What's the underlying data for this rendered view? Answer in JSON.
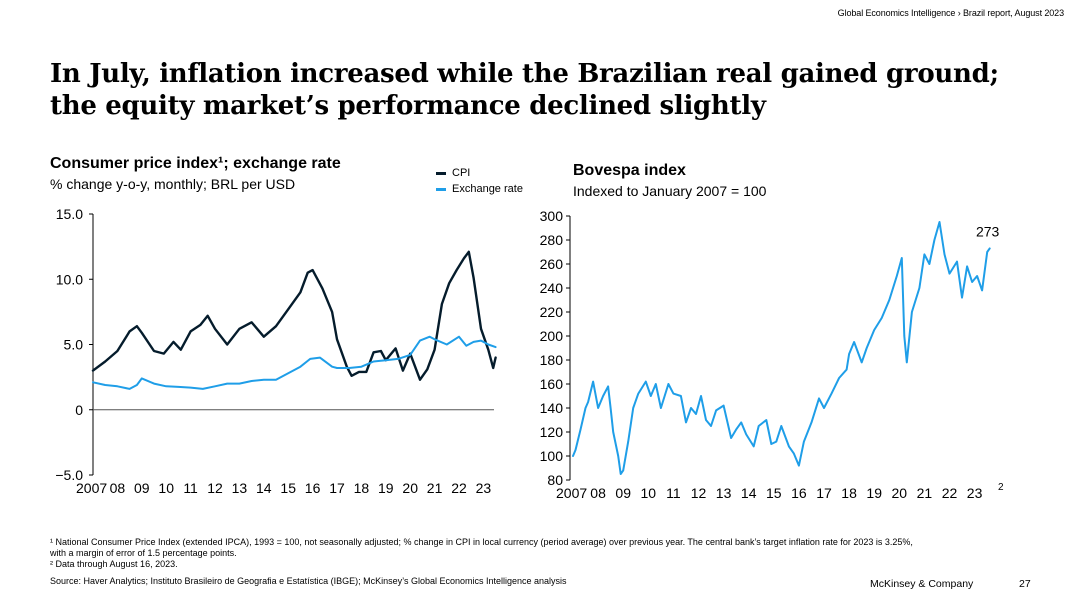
{
  "header": {
    "report_label": "Global Economics Intelligence › Brazil report, August 2023"
  },
  "title": {
    "line1": "In July, inflation increased while the Brazilian real gained ground;",
    "line2": "the equity market’s performance declined slightly"
  },
  "left_chart": {
    "title": "Consumer price index¹; exchange rate",
    "subtitle": "% change y-o-y, monthly; BRL per USD",
    "legend": [
      {
        "label": "CPI",
        "color": "#051c2c"
      },
      {
        "label": "Exchange rate",
        "color": "#1f9ee8"
      }
    ]
  },
  "right_chart": {
    "title": "Bovespa index",
    "subtitle": "Indexed to January 2007 = 100",
    "end_label": "273",
    "footnote_mark": "2"
  },
  "footer": {
    "footnote1_line1": "¹ National Consumer Price Index (extended IPCA), 1993 = 100, not seasonally adjusted; % change in CPI in local currency (period average) over previous year. The central bank’s target inflation rate for 2023 is 3.25%,",
    "footnote1_line2": "with a margin of error of 1.5 percentage points.",
    "footnote2": "² Data through August 16, 2023.",
    "source": "Source: Haver Analytics; Instituto Brasileiro de Geografia e Estatística (IBGE); McKinsey’s Global Economics Intelligence analysis",
    "brand": "McKinsey & Company",
    "page_number": "27"
  },
  "chart_data": [
    {
      "type": "line",
      "title": "Consumer price index¹; exchange rate",
      "subtitle": "% change y-o-y, monthly; BRL per USD",
      "x_ticks": [
        "2007",
        "08",
        "09",
        "10",
        "11",
        "12",
        "13",
        "14",
        "15",
        "16",
        "17",
        "18",
        "19",
        "20",
        "21",
        "22",
        "23"
      ],
      "y_ticks": [
        "15.0",
        "10.0",
        "5.0",
        "0",
        "−5.0"
      ],
      "ylim": [
        -5,
        15
      ],
      "series": [
        {
          "name": "CPI",
          "color": "#051c2c",
          "x": [
            2007.0,
            2007.5,
            2008.0,
            2008.5,
            2008.8,
            2009.0,
            2009.5,
            2009.9,
            2010.3,
            2010.6,
            2011.0,
            2011.4,
            2011.7,
            2012.0,
            2012.5,
            2013.0,
            2013.5,
            2014.0,
            2014.5,
            2015.0,
            2015.5,
            2015.8,
            2016.0,
            2016.4,
            2016.8,
            2017.0,
            2017.4,
            2017.6,
            2017.9,
            2018.2,
            2018.5,
            2018.8,
            2019.0,
            2019.4,
            2019.7,
            2020.0,
            2020.4,
            2020.7,
            2021.0,
            2021.3,
            2021.6,
            2021.9,
            2022.2,
            2022.4,
            2022.6,
            2022.9,
            2023.2,
            2023.4,
            2023.5
          ],
          "values": [
            3.0,
            3.7,
            4.5,
            6.0,
            6.4,
            5.9,
            4.5,
            4.3,
            5.2,
            4.6,
            6.0,
            6.5,
            7.2,
            6.2,
            5.0,
            6.2,
            6.7,
            5.6,
            6.4,
            7.7,
            9.0,
            10.5,
            10.7,
            9.3,
            7.5,
            5.4,
            3.3,
            2.6,
            2.9,
            2.9,
            4.4,
            4.5,
            3.8,
            4.7,
            3.0,
            4.3,
            2.3,
            3.1,
            4.6,
            8.1,
            9.7,
            10.7,
            11.6,
            12.1,
            10.1,
            6.2,
            4.6,
            3.2,
            4.0
          ]
        },
        {
          "name": "Exchange rate",
          "color": "#1f9ee8",
          "x": [
            2007.0,
            2007.5,
            2008.0,
            2008.5,
            2008.8,
            2009.0,
            2009.5,
            2010.0,
            2010.5,
            2011.0,
            2011.5,
            2012.0,
            2012.5,
            2013.0,
            2013.5,
            2014.0,
            2014.5,
            2015.0,
            2015.5,
            2015.9,
            2016.3,
            2016.8,
            2017.0,
            2017.5,
            2018.0,
            2018.5,
            2019.0,
            2019.5,
            2020.0,
            2020.4,
            2020.8,
            2021.0,
            2021.5,
            2022.0,
            2022.3,
            2022.6,
            2022.9,
            2023.2,
            2023.5
          ],
          "values": [
            2.1,
            1.9,
            1.8,
            1.6,
            1.9,
            2.4,
            2.0,
            1.8,
            1.75,
            1.7,
            1.6,
            1.8,
            2.0,
            2.0,
            2.2,
            2.3,
            2.3,
            2.8,
            3.3,
            3.9,
            4.0,
            3.3,
            3.2,
            3.2,
            3.3,
            3.7,
            3.8,
            3.9,
            4.2,
            5.3,
            5.6,
            5.4,
            5.0,
            5.6,
            4.9,
            5.2,
            5.3,
            5.0,
            4.8
          ]
        }
      ]
    },
    {
      "type": "line",
      "title": "Bovespa index",
      "subtitle": "Indexed to January 2007 = 100",
      "x_ticks": [
        "2007",
        "08",
        "09",
        "10",
        "11",
        "12",
        "13",
        "14",
        "15",
        "16",
        "17",
        "18",
        "19",
        "20",
        "21",
        "22",
        "23"
      ],
      "y_ticks": [
        "300",
        "280",
        "260",
        "240",
        "220",
        "200",
        "180",
        "160",
        "140",
        "120",
        "100",
        "80"
      ],
      "ylim": [
        80,
        300
      ],
      "annotation": "273",
      "series": [
        {
          "name": "Bovespa index",
          "color": "#1f9ee8",
          "x": [
            2007.0,
            2007.1,
            2007.3,
            2007.5,
            2007.6,
            2007.8,
            2008.0,
            2008.2,
            2008.4,
            2008.5,
            2008.6,
            2008.8,
            2008.9,
            2009.0,
            2009.2,
            2009.4,
            2009.6,
            2009.9,
            2010.1,
            2010.3,
            2010.5,
            2010.8,
            2011.0,
            2011.3,
            2011.5,
            2011.7,
            2011.9,
            2012.1,
            2012.3,
            2012.5,
            2012.7,
            2013.0,
            2013.3,
            2013.5,
            2013.7,
            2013.9,
            2014.2,
            2014.4,
            2014.7,
            2014.9,
            2015.1,
            2015.3,
            2015.6,
            2015.8,
            2016.0,
            2016.2,
            2016.5,
            2016.8,
            2017.0,
            2017.3,
            2017.6,
            2017.9,
            2018.0,
            2018.2,
            2018.5,
            2018.7,
            2018.9,
            2019.0,
            2019.3,
            2019.6,
            2019.9,
            2020.1,
            2020.2,
            2020.3,
            2020.5,
            2020.8,
            2021.0,
            2021.2,
            2021.4,
            2021.6,
            2021.8,
            2022.0,
            2022.3,
            2022.5,
            2022.7,
            2022.9,
            2023.1,
            2023.3,
            2023.5,
            2023.6
          ],
          "values": [
            100,
            105,
            122,
            140,
            145,
            162,
            140,
            150,
            158,
            140,
            120,
            100,
            85,
            88,
            112,
            140,
            152,
            162,
            150,
            160,
            140,
            160,
            152,
            150,
            128,
            140,
            135,
            150,
            130,
            125,
            138,
            142,
            115,
            122,
            128,
            118,
            108,
            125,
            130,
            110,
            112,
            125,
            108,
            102,
            92,
            112,
            128,
            148,
            140,
            152,
            165,
            172,
            185,
            195,
            178,
            190,
            200,
            205,
            215,
            230,
            250,
            265,
            200,
            178,
            220,
            240,
            268,
            260,
            280,
            295,
            268,
            252,
            262,
            232,
            258,
            245,
            250,
            238,
            270,
            273
          ]
        }
      ]
    }
  ]
}
